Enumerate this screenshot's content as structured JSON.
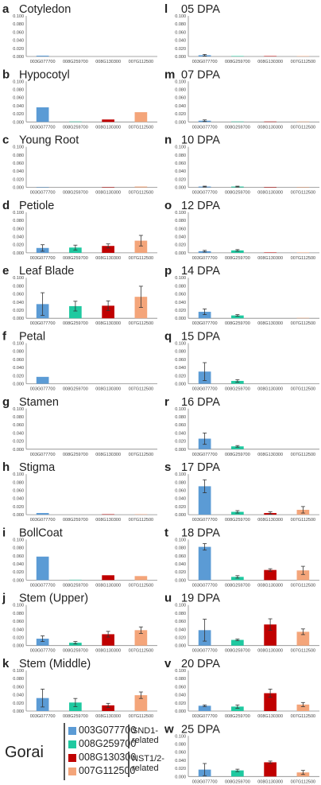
{
  "colors": [
    "#5b9bd5",
    "#1fc9a0",
    "#c00000",
    "#f4a57a"
  ],
  "legend": {
    "title": "Gorai",
    "items": [
      {
        "label": "003G077700",
        "color": "#5b9bd5"
      },
      {
        "label": "008G259700",
        "color": "#1fc9a0"
      },
      {
        "label": "008G130300",
        "color": "#c00000"
      },
      {
        "label": "007G112500",
        "color": "#f4a57a"
      }
    ],
    "groups": [
      {
        "lines": [
          "SND1-",
          "related"
        ]
      },
      {
        "lines": [
          "NST1/2-",
          "related"
        ]
      }
    ]
  },
  "chart_data": [
    {
      "type": "bar",
      "letter": "a",
      "title": "Cotyledon",
      "categories": [
        "003G077700",
        "008G259700",
        "008G130300",
        "007G112500"
      ],
      "values": [
        0.002,
        0,
        0,
        0
      ],
      "errors": [
        0,
        0,
        0,
        0
      ],
      "ylim": [
        0,
        0.1
      ],
      "yticks": [
        "0.000",
        "0.020",
        "0.040",
        "0.060",
        "0.080",
        "0.100"
      ]
    },
    {
      "type": "bar",
      "letter": "b",
      "title": "Hypocotyl",
      "categories": [
        "003G077700",
        "008G259700",
        "008G130300",
        "007G112500"
      ],
      "values": [
        0.036,
        0.001,
        0.006,
        0.024
      ],
      "errors": [
        0,
        0,
        0,
        0
      ],
      "ylim": [
        0,
        0.1
      ],
      "yticks": [
        "0.000",
        "0.020",
        "0.040",
        "0.060",
        "0.080",
        "0.100"
      ]
    },
    {
      "type": "bar",
      "letter": "c",
      "title": "Young Root",
      "categories": [
        "003G077700",
        "008G259700",
        "008G130300",
        "007G112500"
      ],
      "values": [
        0.001,
        0,
        0.001,
        0.002
      ],
      "errors": [
        0,
        0,
        0,
        0
      ],
      "ylim": [
        0,
        0.1
      ],
      "yticks": [
        "0.000",
        "0.020",
        "0.040",
        "0.060",
        "0.080",
        "0.100"
      ]
    },
    {
      "type": "bar",
      "letter": "d",
      "title": "Petiole",
      "categories": [
        "003G077700",
        "008G259700",
        "008G130300",
        "007G112500"
      ],
      "values": [
        0.012,
        0.013,
        0.017,
        0.03
      ],
      "errors": [
        0.008,
        0.006,
        0.005,
        0.013
      ],
      "ylim": [
        0,
        0.1
      ],
      "yticks": [
        "0.000",
        "0.020",
        "0.040",
        "0.060",
        "0.080",
        "0.100"
      ]
    },
    {
      "type": "bar",
      "letter": "e",
      "title": "Leaf Blade",
      "categories": [
        "003G077700",
        "008G259700",
        "008G130300",
        "007G112500"
      ],
      "values": [
        0.035,
        0.03,
        0.031,
        0.053
      ],
      "errors": [
        0.028,
        0.012,
        0.012,
        0.026
      ],
      "ylim": [
        0,
        0.1
      ],
      "yticks": [
        "0.000",
        "0.020",
        "0.040",
        "0.060",
        "0.080",
        "0.100"
      ]
    },
    {
      "type": "bar",
      "letter": "f",
      "title": "Petal",
      "categories": [
        "003G077700",
        "008G259700",
        "008G130300",
        "007G112500"
      ],
      "values": [
        0.017,
        0,
        0,
        0
      ],
      "errors": [
        0,
        0,
        0,
        0
      ],
      "ylim": [
        0,
        0.1
      ],
      "yticks": [
        "0.000",
        "0.020",
        "0.040",
        "0.060",
        "0.080",
        "0.100"
      ]
    },
    {
      "type": "bar",
      "letter": "g",
      "title": "Stamen",
      "categories": [
        "003G077700",
        "008G259700",
        "008G130300",
        "007G112500"
      ],
      "values": [
        0,
        0,
        0,
        0
      ],
      "errors": [
        0,
        0,
        0,
        0
      ],
      "ylim": [
        0,
        0.1
      ],
      "yticks": [
        "0.000",
        "0.020",
        "0.040",
        "0.060",
        "0.080",
        "0.100"
      ]
    },
    {
      "type": "bar",
      "letter": "h",
      "title": "Stigma",
      "categories": [
        "003G077700",
        "008G259700",
        "008G130300",
        "007G112500"
      ],
      "values": [
        0.004,
        0,
        0.001,
        0.001
      ],
      "errors": [
        0,
        0,
        0,
        0
      ],
      "ylim": [
        0,
        0.1
      ],
      "yticks": [
        "0.000",
        "0.020",
        "0.040",
        "0.060",
        "0.080",
        "0.100"
      ]
    },
    {
      "type": "bar",
      "letter": "i",
      "title": "BollCoat",
      "categories": [
        "003G077700",
        "008G259700",
        "008G130300",
        "007G112500"
      ],
      "values": [
        0.058,
        0.001,
        0.012,
        0.01
      ],
      "errors": [
        0,
        0,
        0,
        0
      ],
      "ylim": [
        0,
        0.1
      ],
      "yticks": [
        "0.000",
        "0.020",
        "0.040",
        "0.060",
        "0.080",
        "0.100"
      ]
    },
    {
      "type": "bar",
      "letter": "j",
      "title": "Stem (Upper)",
      "categories": [
        "003G077700",
        "008G259700",
        "008G130300",
        "007G112500"
      ],
      "values": [
        0.017,
        0.007,
        0.028,
        0.038
      ],
      "errors": [
        0.007,
        0.003,
        0.007,
        0.008
      ],
      "ylim": [
        0,
        0.1
      ],
      "yticks": [
        "0.000",
        "0.020",
        "0.040",
        "0.060",
        "0.080",
        "0.100"
      ]
    },
    {
      "type": "bar",
      "letter": "k",
      "title": "Stem (Middle)",
      "categories": [
        "003G077700",
        "008G259700",
        "008G130300",
        "007G112500"
      ],
      "values": [
        0.032,
        0.021,
        0.014,
        0.039
      ],
      "errors": [
        0.022,
        0.01,
        0.005,
        0.008
      ],
      "ylim": [
        0,
        0.1
      ],
      "yticks": [
        "0.000",
        "0.020",
        "0.040",
        "0.060",
        "0.080",
        "0.100"
      ]
    },
    {
      "type": "bar",
      "letter": "l",
      "title": "05 DPA",
      "categories": [
        "003G077700",
        "008G259700",
        "008G130300",
        "007G112500"
      ],
      "values": [
        0.003,
        0.001,
        0.001,
        0.001
      ],
      "errors": [
        0.002,
        0,
        0,
        0
      ],
      "ylim": [
        0,
        0.1
      ],
      "yticks": [
        "0.000",
        "0.020",
        "0.040",
        "0.060",
        "0.080",
        "0.100"
      ]
    },
    {
      "type": "bar",
      "letter": "m",
      "title": "07 DPA",
      "categories": [
        "003G077700",
        "008G259700",
        "008G130300",
        "007G112500"
      ],
      "values": [
        0.003,
        0.001,
        0.001,
        0.001
      ],
      "errors": [
        0.002,
        0,
        0,
        0
      ],
      "ylim": [
        0,
        0.1
      ],
      "yticks": [
        "0.000",
        "0.020",
        "0.040",
        "0.060",
        "0.080",
        "0.100"
      ]
    },
    {
      "type": "bar",
      "letter": "n",
      "title": "10 DPA",
      "categories": [
        "003G077700",
        "008G259700",
        "008G130300",
        "007G112500"
      ],
      "values": [
        0.002,
        0.002,
        0.001,
        0.001
      ],
      "errors": [
        0.001,
        0.001,
        0,
        0
      ],
      "ylim": [
        0,
        0.1
      ],
      "yticks": [
        "0.000",
        "0.020",
        "0.040",
        "0.060",
        "0.080",
        "0.100"
      ]
    },
    {
      "type": "bar",
      "letter": "o",
      "title": "12 DPA",
      "categories": [
        "003G077700",
        "008G259700",
        "008G130300",
        "007G112500"
      ],
      "values": [
        0.004,
        0.006,
        0.001,
        0.001
      ],
      "errors": [
        0.002,
        0.002,
        0,
        0
      ],
      "ylim": [
        0,
        0.1
      ],
      "yticks": [
        "0.000",
        "0.020",
        "0.040",
        "0.060",
        "0.080",
        "0.100"
      ]
    },
    {
      "type": "bar",
      "letter": "p",
      "title": "14 DPA",
      "categories": [
        "003G077700",
        "008G259700",
        "008G130300",
        "007G112500"
      ],
      "values": [
        0.016,
        0.007,
        0,
        0.001
      ],
      "errors": [
        0.007,
        0.002,
        0,
        0
      ],
      "ylim": [
        0,
        0.1
      ],
      "yticks": [
        "0.000",
        "0.020",
        "0.040",
        "0.060",
        "0.080",
        "0.100"
      ]
    },
    {
      "type": "bar",
      "letter": "q",
      "title": "15 DPA",
      "categories": [
        "003G077700",
        "008G259700",
        "008G130300",
        "007G112500"
      ],
      "values": [
        0.03,
        0.007,
        0,
        0
      ],
      "errors": [
        0.022,
        0.003,
        0,
        0
      ],
      "ylim": [
        0,
        0.1
      ],
      "yticks": [
        "0.000",
        "0.020",
        "0.040",
        "0.060",
        "0.080",
        "0.100"
      ]
    },
    {
      "type": "bar",
      "letter": "r",
      "title": "16 DPA",
      "categories": [
        "003G077700",
        "008G259700",
        "008G130300",
        "007G112500"
      ],
      "values": [
        0.026,
        0.007,
        0,
        0
      ],
      "errors": [
        0.014,
        0.002,
        0,
        0
      ],
      "ylim": [
        0,
        0.1
      ],
      "yticks": [
        "0.000",
        "0.020",
        "0.040",
        "0.060",
        "0.080",
        "0.100"
      ]
    },
    {
      "type": "bar",
      "letter": "s",
      "title": "17 DPA",
      "categories": [
        "003G077700",
        "008G259700",
        "008G130300",
        "007G112500"
      ],
      "values": [
        0.07,
        0.007,
        0.004,
        0.012
      ],
      "errors": [
        0.016,
        0.003,
        0.003,
        0.008
      ],
      "ylim": [
        0,
        0.1
      ],
      "yticks": [
        "0.000",
        "0.020",
        "0.040",
        "0.060",
        "0.080",
        "0.100"
      ]
    },
    {
      "type": "bar",
      "letter": "t",
      "title": "18 DPA",
      "categories": [
        "003G077700",
        "008G259700",
        "008G130300",
        "007G112500"
      ],
      "values": [
        0.082,
        0.008,
        0.025,
        0.024
      ],
      "errors": [
        0.008,
        0.003,
        0.003,
        0.01
      ],
      "ylim": [
        0,
        0.1
      ],
      "yticks": [
        "0.000",
        "0.020",
        "0.040",
        "0.060",
        "0.080",
        "0.100"
      ]
    },
    {
      "type": "bar",
      "letter": "u",
      "title": "19 DPA",
      "categories": [
        "003G077700",
        "008G259700",
        "008G130300",
        "007G112500"
      ],
      "values": [
        0.038,
        0.014,
        0.052,
        0.034
      ],
      "errors": [
        0.027,
        0.002,
        0.014,
        0.007
      ],
      "ylim": [
        0,
        0.1
      ],
      "yticks": [
        "0.000",
        "0.020",
        "0.040",
        "0.060",
        "0.080",
        "0.100"
      ]
    },
    {
      "type": "bar",
      "letter": "v",
      "title": "20 DPA",
      "categories": [
        "003G077700",
        "008G259700",
        "008G130300",
        "007G112500"
      ],
      "values": [
        0.013,
        0.011,
        0.044,
        0.016
      ],
      "errors": [
        0.002,
        0.004,
        0.01,
        0.005
      ],
      "ylim": [
        0,
        0.1
      ],
      "yticks": [
        "0.000",
        "0.020",
        "0.040",
        "0.060",
        "0.080",
        "0.100"
      ]
    },
    {
      "type": "bar",
      "letter": "w",
      "title": "25 DPA",
      "categories": [
        "003G077700",
        "008G259700",
        "008G130300",
        "007G112500"
      ],
      "values": [
        0.017,
        0.015,
        0.035,
        0.01
      ],
      "errors": [
        0.015,
        0.003,
        0.003,
        0.005
      ],
      "ylim": [
        0,
        0.1
      ],
      "yticks": [
        "0.000",
        "0.020",
        "0.040",
        "0.060",
        "0.080",
        "0.100"
      ]
    }
  ]
}
